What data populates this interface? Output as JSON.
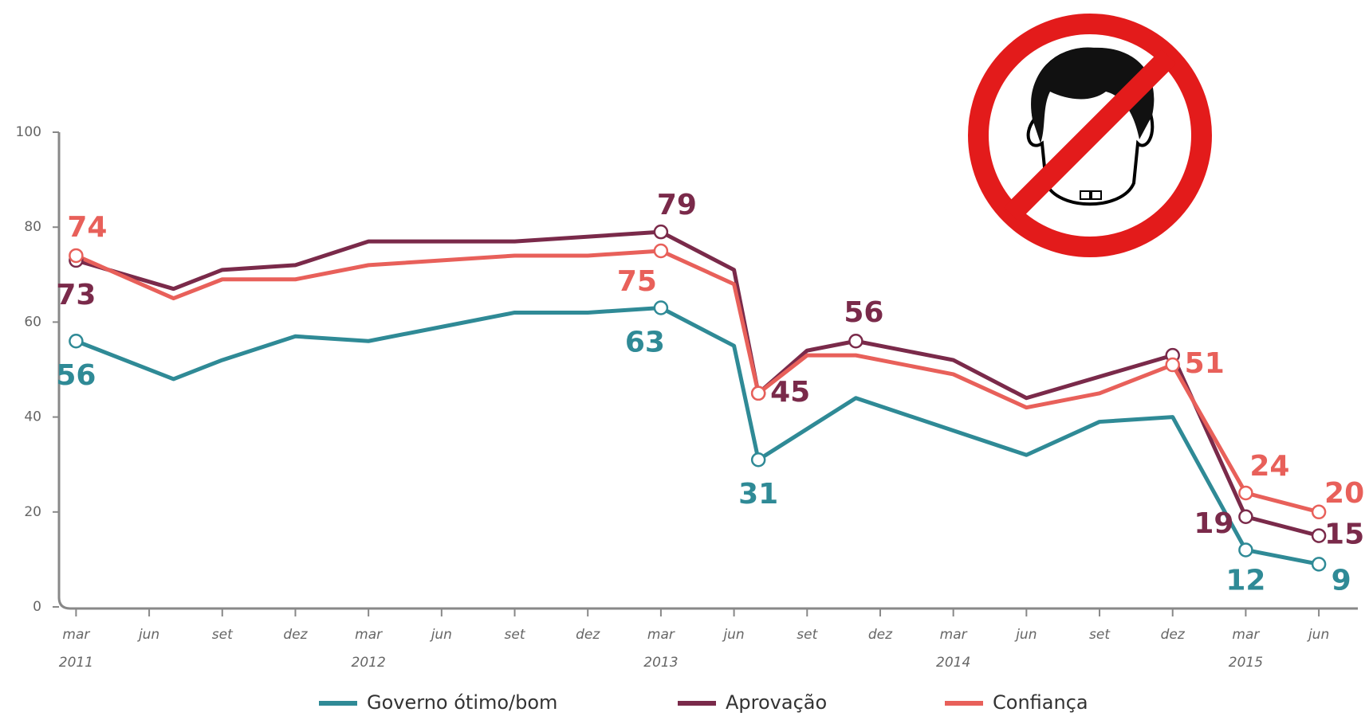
{
  "chart_data": {
    "type": "line",
    "xlim": [
      2.3,
      55.6
    ],
    "ylim": [
      0,
      100
    ],
    "yticks": [
      0,
      20,
      40,
      60,
      80,
      100
    ],
    "xticks": [
      {
        "value": 3,
        "label": "mar"
      },
      {
        "value": 6,
        "label": "jun"
      },
      {
        "value": 9,
        "label": "set"
      },
      {
        "value": 12,
        "label": "dez"
      },
      {
        "value": 15,
        "label": "mar"
      },
      {
        "value": 18,
        "label": "jun"
      },
      {
        "value": 21,
        "label": "set"
      },
      {
        "value": 24,
        "label": "dez"
      },
      {
        "value": 27,
        "label": "mar"
      },
      {
        "value": 30,
        "label": "jun"
      },
      {
        "value": 33,
        "label": "set"
      },
      {
        "value": 36,
        "label": "dez"
      },
      {
        "value": 39,
        "label": "mar"
      },
      {
        "value": 42,
        "label": "jun"
      },
      {
        "value": 45,
        "label": "set"
      },
      {
        "value": 48,
        "label": "dez"
      },
      {
        "value": 51,
        "label": "mar"
      },
      {
        "value": 54,
        "label": "jun"
      }
    ],
    "x_year_ticks": [
      {
        "value": 3,
        "label": "2011"
      },
      {
        "value": 15,
        "label": "2012"
      },
      {
        "value": 27,
        "label": "2013"
      },
      {
        "value": 39,
        "label": "2014"
      },
      {
        "value": 51,
        "label": "2015"
      }
    ],
    "series": [
      {
        "name": "Governo ótimo/bom",
        "color": "#2f8a96",
        "x": [
          3,
          7,
          9,
          12,
          15,
          18,
          21,
          24,
          27,
          30,
          31,
          35,
          42,
          45,
          48,
          51,
          54
        ],
        "values": [
          56,
          48,
          52,
          57,
          56,
          59,
          62,
          62,
          63,
          55,
          31,
          44,
          32,
          39,
          40,
          12,
          9
        ],
        "markers": [
          0,
          8,
          10,
          15,
          16
        ],
        "labeled": [
          0,
          8,
          10,
          15,
          16
        ]
      },
      {
        "name": "Aprovação",
        "color": "#7a2a4a",
        "x": [
          3,
          7,
          9,
          12,
          15,
          21,
          27,
          30,
          31,
          33,
          35,
          39,
          42,
          48,
          51,
          54
        ],
        "values": [
          73,
          67,
          71,
          72,
          77,
          77,
          79,
          71,
          45,
          54,
          56,
          52,
          44,
          53,
          19,
          15
        ],
        "markers": [
          0,
          6,
          8,
          10,
          13,
          14,
          15
        ],
        "labeled": [
          0,
          6,
          8,
          10,
          14,
          15
        ]
      },
      {
        "name": "Confiança",
        "color": "#e8605a",
        "x": [
          3,
          7,
          9,
          12,
          15,
          21,
          24,
          27,
          30,
          31,
          33,
          35,
          39,
          42,
          45,
          48,
          51,
          54
        ],
        "values": [
          74,
          65,
          69,
          69,
          72,
          74,
          74,
          75,
          68,
          45,
          53,
          53,
          49,
          42,
          45,
          51,
          24,
          20
        ],
        "markers": [
          0,
          7,
          9,
          15,
          16,
          17
        ],
        "labeled": [
          0,
          7,
          15,
          16,
          17
        ]
      }
    ]
  }
}
